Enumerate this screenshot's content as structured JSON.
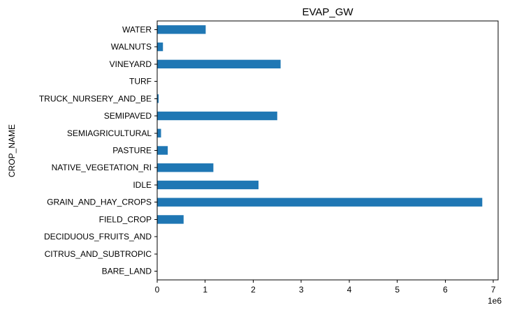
{
  "chart_data": {
    "type": "bar",
    "orientation": "horizontal",
    "title": "EVAP_GW",
    "xlabel": "",
    "ylabel": "CROP_NAME",
    "x_offset_label": "1e6",
    "xlim": [
      0,
      7100000
    ],
    "x_ticks": [
      0,
      1000000,
      2000000,
      3000000,
      4000000,
      5000000,
      6000000,
      7000000
    ],
    "x_tick_labels": [
      "0",
      "1",
      "2",
      "3",
      "4",
      "5",
      "6",
      "7"
    ],
    "grid": false,
    "legend": "none",
    "bar_color": "#1f77b4",
    "categories": [
      "BARE_LAND",
      "CITRUS_AND_SUBTROPIC",
      "DECIDUOUS_FRUITS_AND",
      "FIELD_CROP",
      "GRAIN_AND_HAY_CROPS",
      "IDLE",
      "NATIVE_VEGETATION_RI",
      "PASTURE",
      "SEMIAGRICULTURAL",
      "SEMIPAVED",
      "TRUCK_NURSERY_AND_BE",
      "TURF",
      "VINEYARD",
      "WALNUTS",
      "WATER"
    ],
    "values": [
      0,
      0,
      0,
      550000,
      6770000,
      2110000,
      1170000,
      220000,
      80000,
      2500000,
      30000,
      0,
      2570000,
      120000,
      1010000
    ]
  }
}
